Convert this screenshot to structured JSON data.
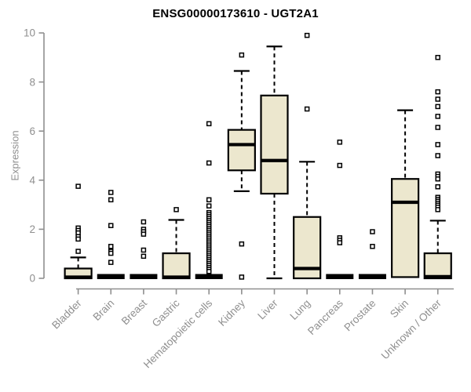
{
  "chart_data": {
    "type": "boxplot",
    "title": "ENSG00000173610 - UGT2A1",
    "ylabel": "Expression",
    "xlabel": "",
    "ylim": [
      0,
      10
    ],
    "yticks": [
      0,
      2,
      4,
      6,
      8,
      10
    ],
    "grid": false,
    "legend": "none",
    "colors": {
      "box_fill": "#ECE7CE",
      "box_stroke": "#000000",
      "median": "#000000",
      "whisker": "#000000",
      "outlier_fill": "#FFFFFF",
      "outlier_stroke": "#000000",
      "axis": "#8F8F8F",
      "tick_label": "#8F8F8F",
      "title": "#000000",
      "background": "#FFFFFF"
    },
    "categories": [
      "Bladder",
      "Brain",
      "Breast",
      "Gastric",
      "Hematopoietic cells",
      "Kidney",
      "Liver",
      "Lung",
      "Pancreas",
      "Prostate",
      "Skin",
      "Unknown / Other"
    ],
    "series": [
      {
        "label": "Bladder",
        "whisker_low": 0,
        "q1": 0,
        "median": 0.05,
        "q3": 0.4,
        "whisker_high": 0.85,
        "outliers": [
          3.75,
          2.05,
          1.95,
          1.85,
          1.7,
          1.6,
          1.1
        ]
      },
      {
        "label": "Brain",
        "whisker_low": 0,
        "q1": 0,
        "median": 0,
        "q3": 0,
        "whisker_high": 0,
        "outliers": [
          3.5,
          3.2,
          2.15,
          1.3,
          1.1,
          1.02,
          0.65
        ]
      },
      {
        "label": "Breast",
        "whisker_low": 0,
        "q1": 0,
        "median": 0,
        "q3": 0,
        "whisker_high": 0,
        "outliers": [
          2.3,
          2.0,
          1.9,
          1.8,
          1.15,
          0.9
        ]
      },
      {
        "label": "Gastric",
        "whisker_low": 0,
        "q1": 0,
        "median": 0.05,
        "q3": 1.02,
        "whisker_high": 2.38,
        "outliers": [
          2.8
        ]
      },
      {
        "label": "Hematopoietic cells",
        "whisker_low": 0,
        "q1": 0,
        "median": 0,
        "q3": 0,
        "whisker_high": 0,
        "outliers": [
          6.3,
          4.7,
          3.2,
          2.95,
          2.68,
          2.6,
          2.52,
          2.44,
          2.36,
          2.28,
          2.2,
          2.12,
          2.04,
          1.96,
          1.88,
          1.8,
          1.72,
          1.64,
          1.56,
          1.48,
          1.4,
          1.32,
          1.24,
          1.16,
          1.08,
          1.0,
          0.92,
          0.84,
          0.76,
          0.68,
          0.6,
          0.52,
          0.44,
          0.36,
          0.28
        ]
      },
      {
        "label": "Kidney",
        "whisker_low": 3.55,
        "q1": 4.4,
        "median": 5.45,
        "q3": 6.05,
        "whisker_high": 8.45,
        "outliers": [
          9.1,
          1.4,
          0.05
        ]
      },
      {
        "label": "Liver",
        "whisker_low": 0,
        "q1": 3.45,
        "median": 4.8,
        "q3": 7.45,
        "whisker_high": 9.45,
        "outliers": []
      },
      {
        "label": "Lung",
        "whisker_low": 0,
        "q1": 0,
        "median": 0.4,
        "q3": 2.5,
        "whisker_high": 4.75,
        "outliers": [
          9.9,
          6.9
        ]
      },
      {
        "label": "Pancreas",
        "whisker_low": 0,
        "q1": 0,
        "median": 0,
        "q3": 0,
        "whisker_high": 0,
        "outliers": [
          5.55,
          4.6,
          1.65,
          1.55,
          1.45
        ]
      },
      {
        "label": "Prostate",
        "whisker_low": 0,
        "q1": 0,
        "median": 0,
        "q3": 0,
        "whisker_high": 0,
        "outliers": [
          1.9,
          1.3
        ]
      },
      {
        "label": "Skin",
        "whisker_low": 0.05,
        "q1": 0.05,
        "median": 3.1,
        "q3": 4.05,
        "whisker_high": 6.85,
        "outliers": []
      },
      {
        "label": "Unknown / Other",
        "whisker_low": 0,
        "q1": 0,
        "median": 0.07,
        "q3": 1.02,
        "whisker_high": 2.35,
        "outliers": [
          9.0,
          7.6,
          7.3,
          7.0,
          6.6,
          6.15,
          5.45,
          5.0,
          4.25,
          4.15,
          4.05,
          3.73,
          3.3,
          3.22,
          3.14,
          3.06,
          2.98,
          2.9,
          2.8
        ]
      }
    ]
  }
}
